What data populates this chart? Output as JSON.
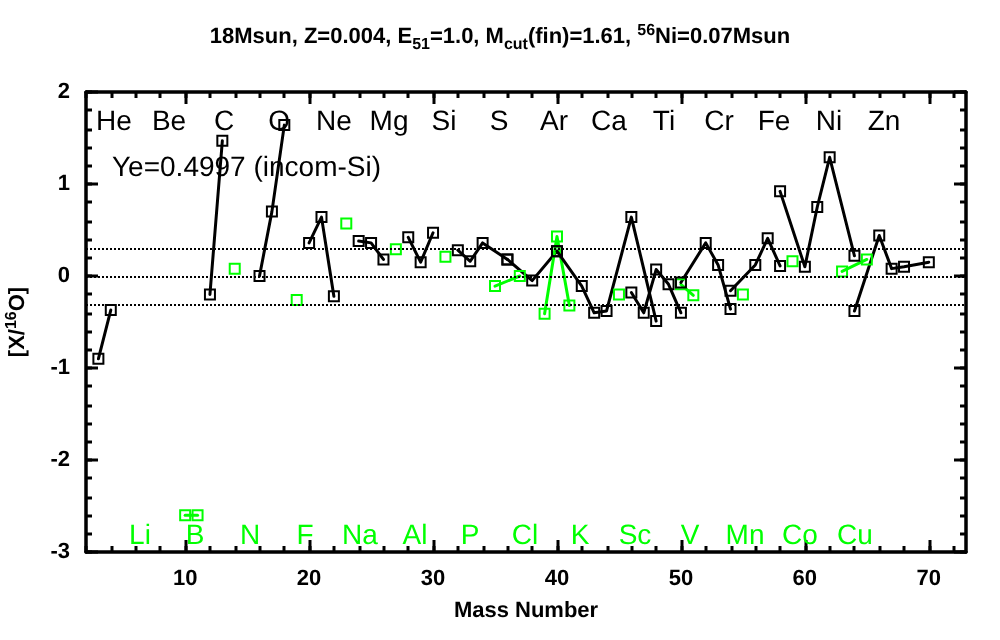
{
  "chart_data": {
    "type": "line",
    "title": "18Msun, Z=0.004, E$_{51}$=1.0, M$_{cut}$(fin)=1.61, $^{56}$Ni=0.07Msun",
    "xlabel": "Mass Number",
    "ylabel": "[X/$^{16}$O]",
    "xlim": [
      2,
      73
    ],
    "xticks": [
      10,
      20,
      30,
      40,
      50,
      60,
      70
    ],
    "ylim": [
      -3,
      2
    ],
    "yticks": [
      -3,
      -2,
      -1,
      0,
      1,
      2
    ],
    "marker": "square",
    "line_style": "solid",
    "grid": false,
    "ref_lines": [
      {
        "axis": "y",
        "value": 0.3,
        "color": "#000000",
        "line_style": "dotted"
      },
      {
        "axis": "y",
        "value": 0,
        "color": "#000000",
        "line_style": "dotted"
      },
      {
        "axis": "y",
        "value": -0.3,
        "color": "#000000",
        "line_style": "dotted"
      }
    ],
    "series": [
      {
        "color": "#000000",
        "x": [
          3,
          4
        ],
        "values": [
          -0.9,
          -0.37
        ]
      },
      {
        "color": "#00ff00",
        "x": [
          10,
          11
        ],
        "values": [
          -2.6,
          -2.6
        ]
      },
      {
        "color": "#000000",
        "x": [
          12,
          13
        ],
        "values": [
          -0.2,
          1.47
        ]
      },
      {
        "color": "#00ff00",
        "x": [
          14
        ],
        "values": [
          0.08
        ]
      },
      {
        "color": "#000000",
        "x": [
          16,
          17,
          18
        ],
        "values": [
          0.0,
          0.7,
          1.64
        ]
      },
      {
        "color": "#00ff00",
        "x": [
          19
        ],
        "values": [
          -0.26
        ]
      },
      {
        "color": "#000000",
        "x": [
          20,
          21,
          22
        ],
        "values": [
          0.36,
          0.64,
          -0.22
        ]
      },
      {
        "color": "#00ff00",
        "x": [
          23
        ],
        "values": [
          0.57
        ]
      },
      {
        "color": "#000000",
        "x": [
          24,
          25,
          26
        ],
        "values": [
          0.38,
          0.36,
          0.18
        ]
      },
      {
        "color": "#00ff00",
        "x": [
          27
        ],
        "values": [
          0.29
        ]
      },
      {
        "color": "#000000",
        "x": [
          28,
          29,
          30
        ],
        "values": [
          0.42,
          0.15,
          0.47
        ]
      },
      {
        "color": "#00ff00",
        "x": [
          31
        ],
        "values": [
          0.21
        ]
      },
      {
        "color": "#000000",
        "x": [
          32,
          33,
          34,
          36
        ],
        "values": [
          0.28,
          0.16,
          0.36,
          0.18
        ]
      },
      {
        "color": "#00ff00",
        "x": [
          35,
          37
        ],
        "values": [
          -0.11,
          0.0
        ]
      },
      {
        "color": "#000000",
        "x": [
          36,
          38,
          40
        ],
        "values": [
          0.18,
          -0.05,
          0.27
        ]
      },
      {
        "color": "#00ff00",
        "x": [
          39,
          40,
          41
        ],
        "values": [
          -0.41,
          0.43,
          -0.32
        ]
      },
      {
        "color": "#000000",
        "x": [
          40,
          42,
          43,
          44,
          46,
          48
        ],
        "values": [
          0.27,
          -0.11,
          -0.4,
          -0.38,
          0.64,
          -0.49
        ]
      },
      {
        "color": "#00ff00",
        "x": [
          45
        ],
        "values": [
          -0.2
        ]
      },
      {
        "color": "#000000",
        "x": [
          46,
          47,
          48,
          49,
          50
        ],
        "values": [
          -0.18,
          -0.4,
          0.07,
          -0.09,
          -0.4
        ]
      },
      {
        "color": "#00ff00",
        "x": [
          50,
          51
        ],
        "values": [
          -0.09,
          -0.21
        ]
      },
      {
        "color": "#000000",
        "x": [
          50,
          52,
          53,
          54
        ],
        "values": [
          -0.07,
          0.36,
          0.12,
          -0.36
        ]
      },
      {
        "color": "#00ff00",
        "x": [
          55
        ],
        "values": [
          -0.2
        ]
      },
      {
        "color": "#000000",
        "x": [
          54,
          56,
          57,
          58
        ],
        "values": [
          -0.16,
          0.12,
          0.41,
          0.11
        ]
      },
      {
        "color": "#00ff00",
        "x": [
          59
        ],
        "values": [
          0.16
        ]
      },
      {
        "color": "#000000",
        "x": [
          58,
          60,
          61,
          62,
          64
        ],
        "values": [
          0.92,
          0.1,
          0.75,
          1.29,
          0.22
        ]
      },
      {
        "color": "#00ff00",
        "x": [
          63,
          65
        ],
        "values": [
          0.05,
          0.18
        ]
      },
      {
        "color": "#000000",
        "x": [
          64,
          66,
          67,
          68,
          70
        ],
        "values": [
          -0.38,
          0.44,
          0.08,
          0.1,
          0.15
        ]
      }
    ],
    "annotations": [
      "Ye=0.4997 (incom-Si)",
      "He Be C O Ne Mg Si S Ar Ca Ti Cr Fe Ni Zn",
      "Li B N F Na Al P Cl K Sc V Mn Co Cu"
    ]
  }
}
